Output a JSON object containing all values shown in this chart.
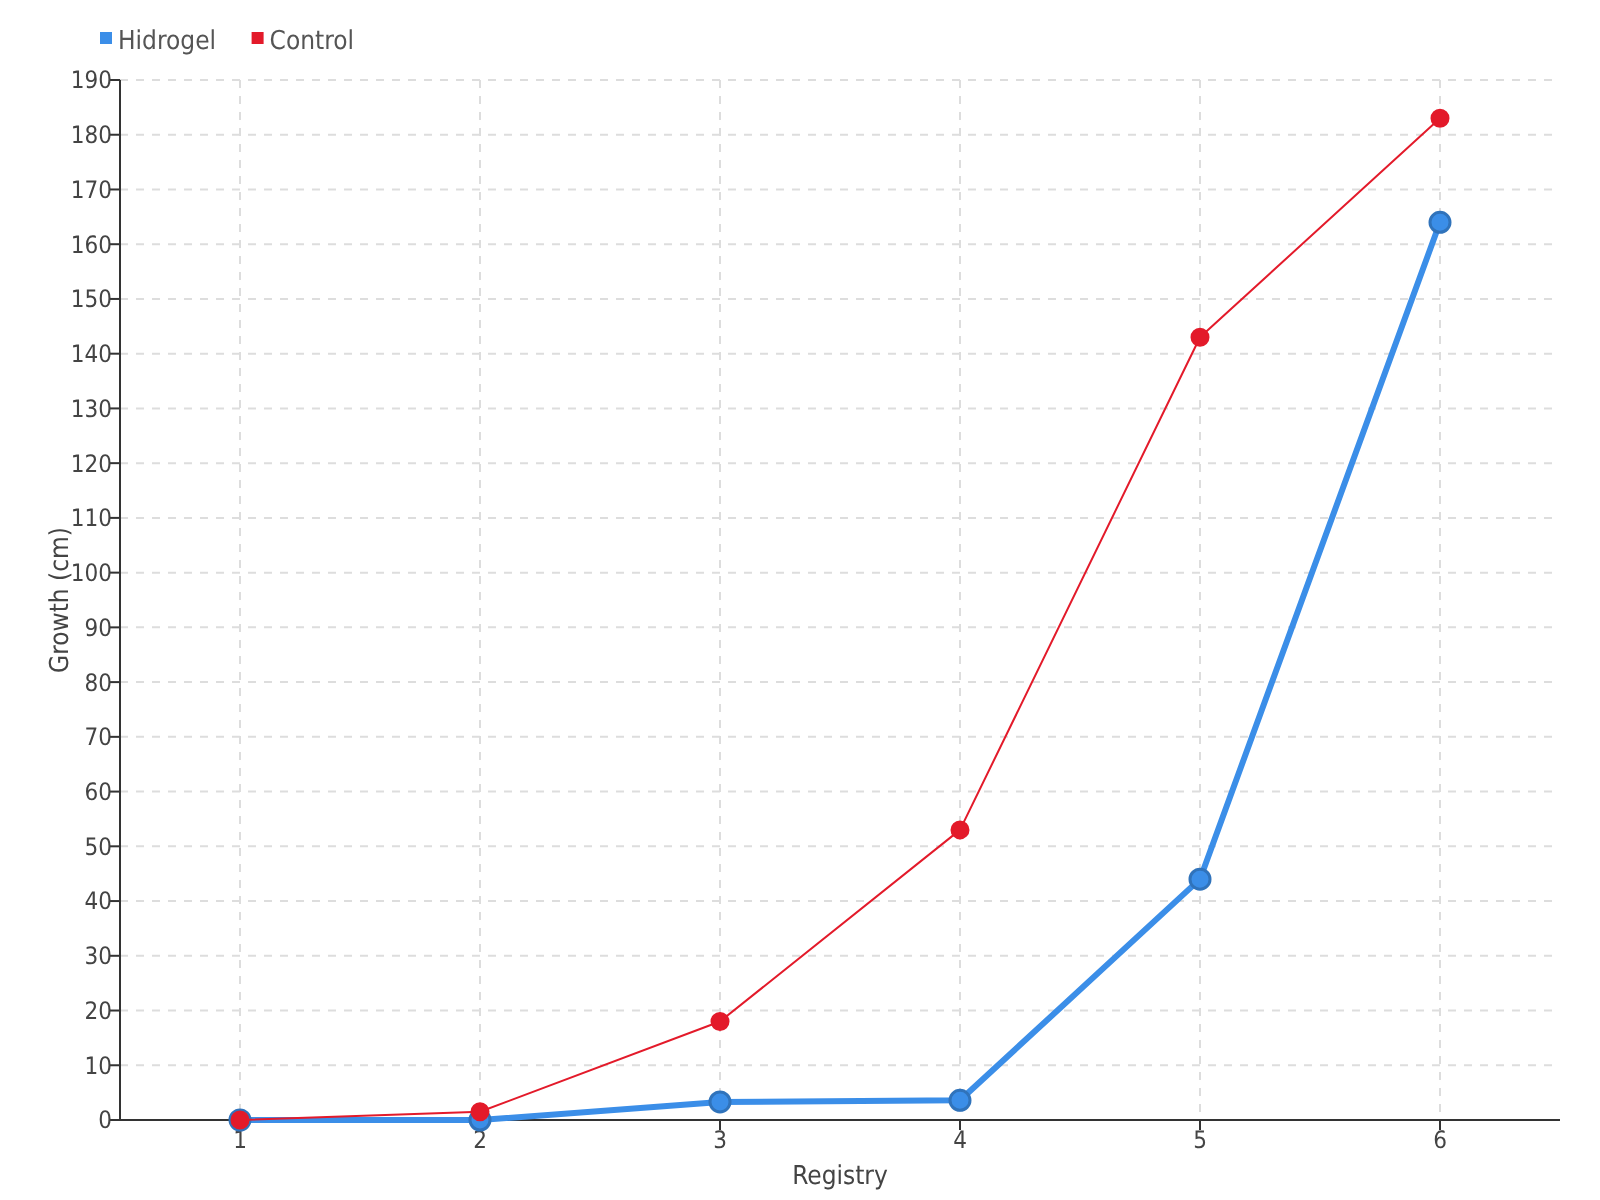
{
  "chart_data": {
    "type": "line",
    "xlabel": "Registry",
    "ylabel": "Growth (cm)",
    "x": [
      1,
      2,
      3,
      4,
      5,
      6
    ],
    "xlim": [
      0.5,
      6.5
    ],
    "xticks": [
      1,
      2,
      3,
      4,
      5,
      6
    ],
    "ylim": [
      0,
      190
    ],
    "yticks": [
      0,
      10,
      20,
      30,
      40,
      50,
      60,
      70,
      80,
      90,
      100,
      110,
      120,
      130,
      140,
      150,
      160,
      170,
      180,
      190
    ],
    "grid": true,
    "legend": "top left",
    "marker": "circle",
    "series": [
      {
        "name": "Hidrogel",
        "color": "#3b8ee8",
        "values": [
          0,
          0,
          3.3,
          3.6,
          44,
          164
        ]
      },
      {
        "name": "Control",
        "color": "#e31a2a",
        "values": [
          0,
          1.5,
          18,
          53,
          143,
          183
        ]
      }
    ]
  }
}
